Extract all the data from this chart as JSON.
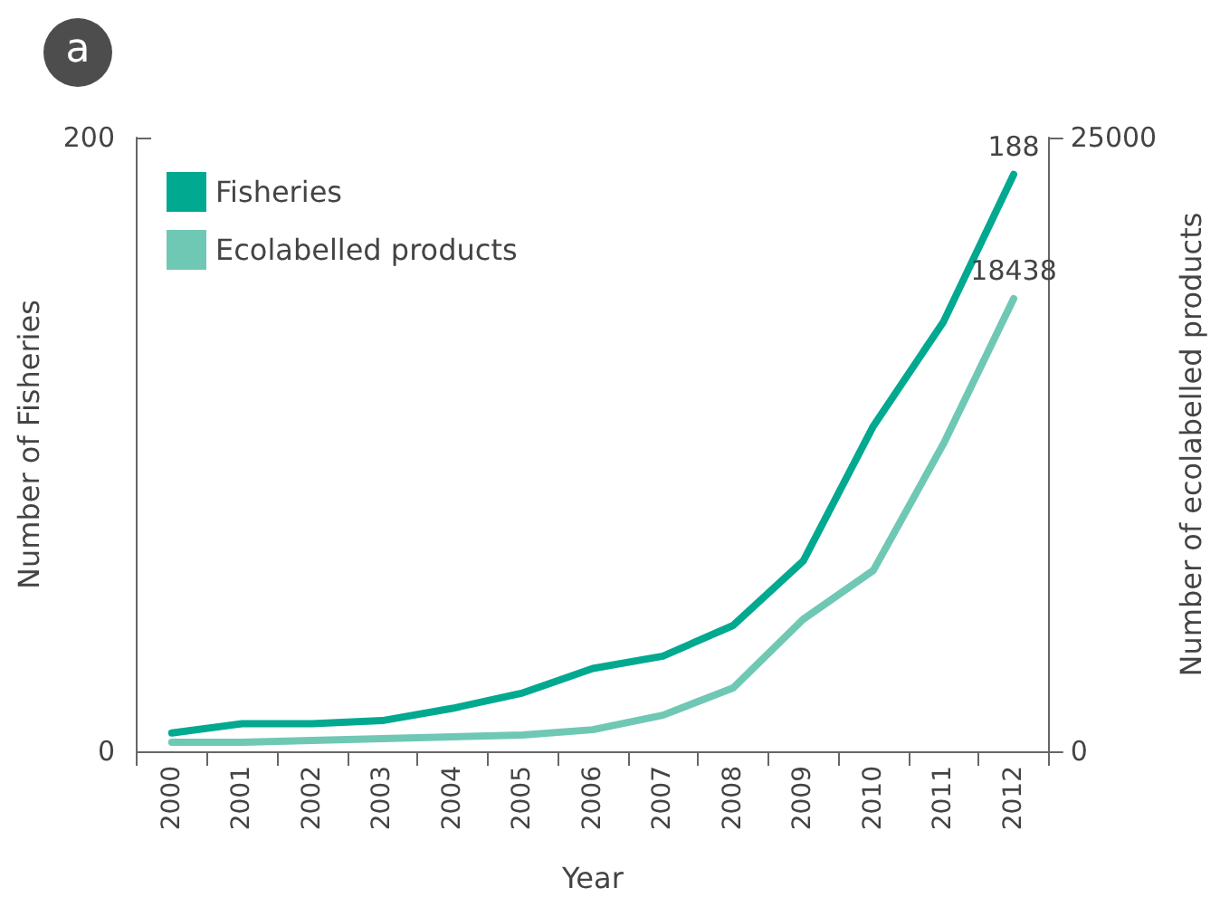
{
  "chart_data": {
    "type": "line",
    "xlabel": "Year",
    "ylabel": "Number of Fisheries",
    "y2label": "Number of ecolabelled products",
    "annotations": [
      "a"
    ],
    "categories": [
      "2000",
      "2001",
      "2002",
      "2003",
      "2004",
      "2005",
      "2006",
      "2007",
      "2008",
      "2009",
      "2010",
      "2011",
      "2012"
    ],
    "series": [
      {
        "name": "Fisheries",
        "color": "#00a98f",
        "values": [
          6,
          9,
          9,
          10,
          14,
          19,
          27,
          31,
          41,
          62,
          106,
          140,
          188
        ],
        "value_labels": [
          null,
          null,
          null,
          null,
          null,
          null,
          null,
          null,
          null,
          null,
          null,
          null,
          "188"
        ]
      },
      {
        "name": "Ecolabelled products",
        "color": "#6fc8b4",
        "axis": "y2",
        "values": [
          370,
          370,
          440,
          520,
          590,
          660,
          880,
          1470,
          2580,
          5380,
          7370,
          12530,
          18438
        ],
        "value_labels": [
          null,
          null,
          null,
          null,
          null,
          null,
          null,
          null,
          null,
          null,
          null,
          null,
          "18438"
        ]
      }
    ],
    "ylim": [
      0,
      200
    ],
    "yticks": [
      0,
      200
    ],
    "y2lim": [
      0,
      25000
    ],
    "y2ticks": [
      0,
      25000
    ],
    "grid": false,
    "legend": "top left",
    "marker": "none",
    "line_style": "solid"
  }
}
